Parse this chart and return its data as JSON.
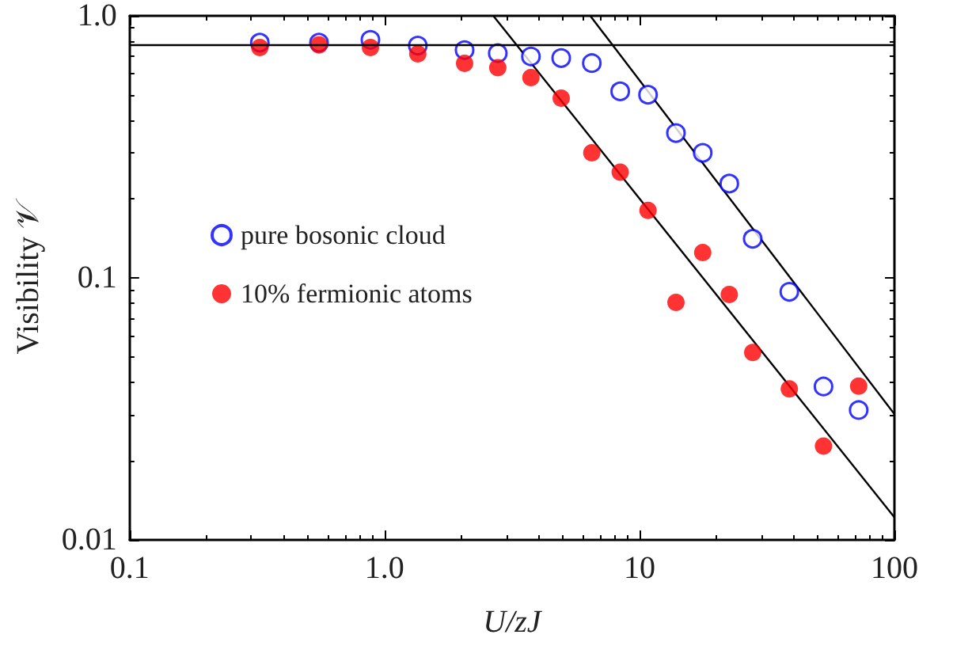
{
  "chart_data": {
    "type": "scatter",
    "xlabel": "U/zJ",
    "ylabel": "Visibility 𝒱",
    "log": "xy",
    "xlim": [
      0.1,
      100
    ],
    "ylim": [
      0.01,
      1
    ],
    "xticks": [
      0.1,
      {
        "value": 1,
        "label": "1.0"
      },
      10,
      100
    ],
    "yticks": [
      0.01,
      0.1,
      {
        "value": 1,
        "label": "1.0"
      }
    ],
    "grid": false,
    "legend": "left",
    "marker": "circle",
    "ref_lines": [
      {
        "axis": "y",
        "value": 0.78,
        "color": "#000000",
        "line_style": "solid"
      }
    ],
    "series": [
      {
        "name": "pure bosonic cloud",
        "color": "#0000ff",
        "x": [
          0.324,
          0.553,
          0.88,
          1.35,
          2.06,
          2.78,
          3.75,
          4.93,
          6.5,
          8.4,
          10.8,
          13.9,
          17.7,
          22.5,
          27.8,
          38.7,
          52.7,
          72.4
        ],
        "values": [
          0.79,
          0.79,
          0.81,
          0.77,
          0.74,
          0.72,
          0.7,
          0.69,
          0.66,
          0.515,
          0.5,
          0.357,
          0.3,
          0.229,
          0.141,
          0.0885,
          0.0385,
          0.0313
        ]
      },
      {
        "name": "10% fermionic atoms",
        "color": "#ff0000",
        "x": [
          0.324,
          0.553,
          0.88,
          1.35,
          2.06,
          2.78,
          3.75,
          4.93,
          6.5,
          8.4,
          10.8,
          13.9,
          17.7,
          22.5,
          27.8,
          38.7,
          52.7,
          72.4
        ],
        "values": [
          0.757,
          0.775,
          0.757,
          0.716,
          0.659,
          0.634,
          0.581,
          0.485,
          0.3,
          0.253,
          0.181,
          0.0806,
          0.125,
          0.0864,
          0.0519,
          0.0377,
          0.0228,
          0.0386
        ]
      },
      {
        "type": "line",
        "color": "#000000",
        "marker": "none",
        "line_style": "solid",
        "x": [
          2.67,
          100
        ],
        "values": [
          1,
          0.0122
        ]
      },
      {
        "type": "line",
        "color": "#000000",
        "marker": "none",
        "line_style": "solid",
        "x": [
          6.41,
          100
        ],
        "values": [
          1,
          0.0302
        ]
      }
    ]
  }
}
